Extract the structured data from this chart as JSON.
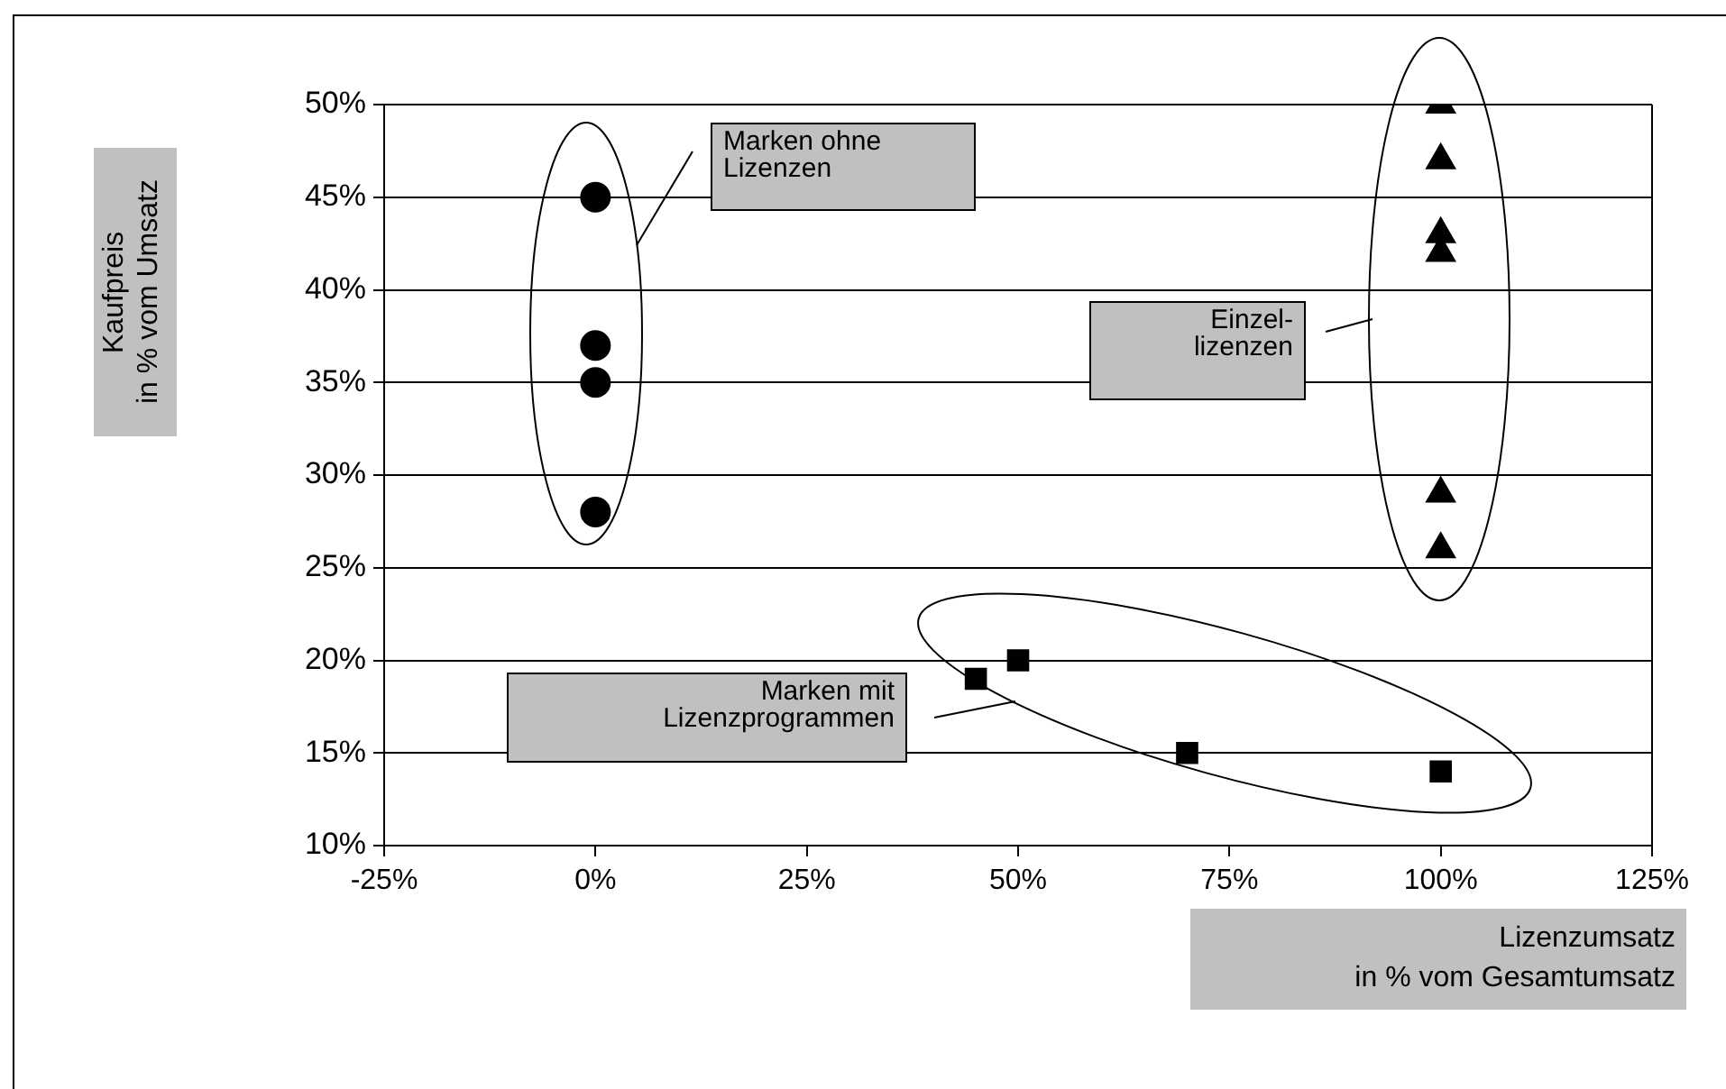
{
  "chart_data": {
    "type": "scatter",
    "xlabel": "Lizenzumsatz\nin % vom Gesamtumsatz",
    "ylabel": "Kaufpreis\nin % vom Umsatz",
    "series": [
      {
        "color": "#000000",
        "marker": "circle",
        "x": [
          0,
          0,
          0,
          0
        ],
        "values": [
          45,
          37,
          35,
          28
        ]
      },
      {
        "color": "#000000",
        "marker": "triangle",
        "x": [
          100,
          100,
          100,
          100,
          100,
          100
        ],
        "values": [
          50,
          47,
          43,
          42,
          29,
          26
        ]
      },
      {
        "color": "#000000",
        "marker": "square",
        "x": [
          45,
          50,
          70,
          100
        ],
        "values": [
          19,
          20,
          15,
          14
        ]
      }
    ],
    "xlim": [
      -25,
      125
    ],
    "xticks": [
      {
        "value": -25,
        "label": "-25%"
      },
      {
        "value": 0,
        "label": "0%"
      },
      {
        "value": 25,
        "label": "25%"
      },
      {
        "value": 50,
        "label": "50%"
      },
      {
        "value": 75,
        "label": "75%"
      },
      {
        "value": 100,
        "label": "100%"
      },
      {
        "value": 125,
        "label": "125%"
      }
    ],
    "ylim": [
      10,
      50
    ],
    "yticks": [
      {
        "value": 10,
        "label": "10%"
      },
      {
        "value": 15,
        "label": "15%"
      },
      {
        "value": 20,
        "label": "20%"
      },
      {
        "value": 25,
        "label": "25%"
      },
      {
        "value": 30,
        "label": "30%"
      },
      {
        "value": 35,
        "label": "35%"
      },
      {
        "value": 40,
        "label": "40%"
      },
      {
        "value": 45,
        "label": "45%"
      },
      {
        "value": 50,
        "label": "50%"
      }
    ],
    "grid": "y",
    "legend": false,
    "annotations": [
      "Marken ohne\nLizenzen",
      "Einzel-\nlizenzen",
      "Marken mit\nLizenzprogrammen"
    ]
  }
}
